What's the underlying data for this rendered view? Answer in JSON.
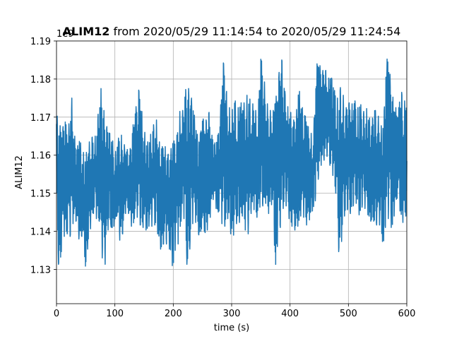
{
  "chart_data": {
    "type": "line",
    "title_bold": "ALIM12",
    "title_rest": " from 2020/05/29 11:14:54 to 2020/05/29 11:24:54",
    "xlabel": "time (s)",
    "ylabel": "ALIM12",
    "offset_text": "1e9",
    "xlim": [
      0,
      600
    ],
    "ylim": [
      1121000000.0,
      1190000000.0
    ],
    "xticks": [
      0,
      100,
      200,
      300,
      400,
      500,
      600
    ],
    "yticks": [
      1130000000.0,
      1140000000.0,
      1150000000.0,
      1160000000.0,
      1170000000.0,
      1180000000.0,
      1190000000.0
    ],
    "ytick_labels": [
      "1.13",
      "1.14",
      "1.15",
      "1.16",
      "1.17",
      "1.18",
      "1.19"
    ],
    "grid": true,
    "line_color": "#1f77b4",
    "series": [
      {
        "x": [
          0,
          5,
          10,
          15,
          20,
          25,
          30,
          35,
          40,
          45,
          50,
          55,
          60,
          65,
          70,
          75,
          80,
          85,
          90,
          95,
          100,
          105,
          110,
          115,
          120,
          125,
          130,
          135,
          140,
          145,
          150,
          155,
          160,
          165,
          170,
          175,
          180,
          185,
          190,
          195,
          200,
          205,
          210,
          215,
          220,
          225,
          230,
          235,
          240,
          245,
          250,
          255,
          260,
          265,
          270,
          275,
          280,
          285,
          290,
          295,
          300,
          305,
          310,
          315,
          320,
          325,
          330,
          335,
          340,
          345,
          350,
          355,
          360,
          365,
          370,
          375,
          380,
          385,
          390,
          395,
          400,
          405,
          410,
          415,
          420,
          425,
          430,
          435,
          440,
          445,
          450,
          455,
          460,
          465,
          470,
          475,
          480,
          485,
          490,
          495,
          500,
          505,
          510,
          515,
          520,
          525,
          530,
          535,
          540,
          545,
          550,
          555,
          560,
          565,
          570,
          575,
          580,
          585,
          590,
          595,
          600
        ],
        "hi": [
          1171000000.0,
          1168000000.0,
          1167000000.0,
          1169000000.0,
          1165000000.0,
          1178000000.0,
          1166000000.0,
          1162000000.0,
          1164000000.0,
          1161000000.0,
          1160000000.0,
          1163000000.0,
          1165000000.0,
          1164000000.0,
          1168000000.0,
          1179000000.0,
          1173000000.0,
          1168000000.0,
          1166000000.0,
          1165000000.0,
          1160000000.0,
          1164000000.0,
          1166000000.0,
          1163000000.0,
          1162000000.0,
          1160000000.0,
          1167000000.0,
          1171000000.0,
          1178000000.0,
          1173000000.0,
          1167000000.0,
          1163000000.0,
          1165000000.0,
          1167000000.0,
          1171000000.0,
          1164000000.0,
          1162000000.0,
          1163000000.0,
          1160000000.0,
          1161000000.0,
          1164000000.0,
          1163000000.0,
          1172000000.0,
          1170000000.0,
          1177000000.0,
          1178000000.0,
          1176000000.0,
          1172000000.0,
          1166000000.0,
          1164000000.0,
          1170000000.0,
          1168000000.0,
          1173000000.0,
          1166000000.0,
          1163000000.0,
          1164000000.0,
          1169000000.0,
          1186000000.0,
          1178000000.0,
          1173000000.0,
          1171000000.0,
          1175000000.0,
          1172000000.0,
          1174000000.0,
          1173000000.0,
          1176000000.0,
          1175000000.0,
          1174000000.0,
          1172000000.0,
          1171000000.0,
          1186000000.0,
          1181000000.0,
          1174000000.0,
          1172000000.0,
          1171000000.0,
          1174000000.0,
          1180000000.0,
          1187000000.0,
          1178000000.0,
          1173000000.0,
          1172000000.0,
          1169000000.0,
          1170000000.0,
          1178000000.0,
          1173000000.0,
          1171000000.0,
          1168000000.0,
          1166000000.0,
          1165000000.0,
          1184000000.0,
          1184000000.0,
          1182000000.0,
          1183000000.0,
          1180000000.0,
          1181000000.0,
          1178000000.0,
          1174000000.0,
          1178000000.0,
          1177000000.0,
          1172000000.0,
          1174000000.0,
          1173000000.0,
          1175000000.0,
          1172000000.0,
          1174000000.0,
          1171000000.0,
          1173000000.0,
          1170000000.0,
          1169000000.0,
          1172000000.0,
          1171000000.0,
          1168000000.0,
          1167000000.0,
          1186000000.0,
          1183000000.0,
          1176000000.0,
          1173000000.0,
          1171000000.0,
          1177000000.0,
          1175000000.0,
          1172000000.0
        ],
        "lo": [
          1146000000.0,
          1124000000.0,
          1140000000.0,
          1138000000.0,
          1140000000.0,
          1138000000.0,
          1144000000.0,
          1142000000.0,
          1136000000.0,
          1140000000.0,
          1130000000.0,
          1138000000.0,
          1142000000.0,
          1146000000.0,
          1142000000.0,
          1143000000.0,
          1128000000.0,
          1133000000.0,
          1144000000.0,
          1140000000.0,
          1142000000.0,
          1145000000.0,
          1134000000.0,
          1142000000.0,
          1146000000.0,
          1144000000.0,
          1140000000.0,
          1145000000.0,
          1143000000.0,
          1141000000.0,
          1141000000.0,
          1140000000.0,
          1142000000.0,
          1141000000.0,
          1142000000.0,
          1138000000.0,
          1134000000.0,
          1138000000.0,
          1136000000.0,
          1135000000.0,
          1129000000.0,
          1138000000.0,
          1136000000.0,
          1146000000.0,
          1142000000.0,
          1126000000.0,
          1140000000.0,
          1143000000.0,
          1142000000.0,
          1138000000.0,
          1142000000.0,
          1139000000.0,
          1141000000.0,
          1145000000.0,
          1150000000.0,
          1144000000.0,
          1146000000.0,
          1140000000.0,
          1142000000.0,
          1144000000.0,
          1137000000.0,
          1140000000.0,
          1143000000.0,
          1142000000.0,
          1145000000.0,
          1138000000.0,
          1140000000.0,
          1147000000.0,
          1145000000.0,
          1143000000.0,
          1148000000.0,
          1146000000.0,
          1148000000.0,
          1143000000.0,
          1149000000.0,
          1130000000.0,
          1139000000.0,
          1142000000.0,
          1148000000.0,
          1146000000.0,
          1142000000.0,
          1141000000.0,
          1140000000.0,
          1142000000.0,
          1145000000.0,
          1143000000.0,
          1141000000.0,
          1144000000.0,
          1146000000.0,
          1149000000.0,
          1156000000.0,
          1158000000.0,
          1159000000.0,
          1160000000.0,
          1156000000.0,
          1154000000.0,
          1148000000.0,
          1128000000.0,
          1142000000.0,
          1145000000.0,
          1146000000.0,
          1144000000.0,
          1148000000.0,
          1147000000.0,
          1143000000.0,
          1148000000.0,
          1145000000.0,
          1144000000.0,
          1142000000.0,
          1143000000.0,
          1141000000.0,
          1142000000.0,
          1135000000.0,
          1144000000.0,
          1143000000.0,
          1140000000.0,
          1146000000.0,
          1150000000.0,
          1143000000.0,
          1142000000.0,
          1145000000.0
        ]
      }
    ]
  }
}
